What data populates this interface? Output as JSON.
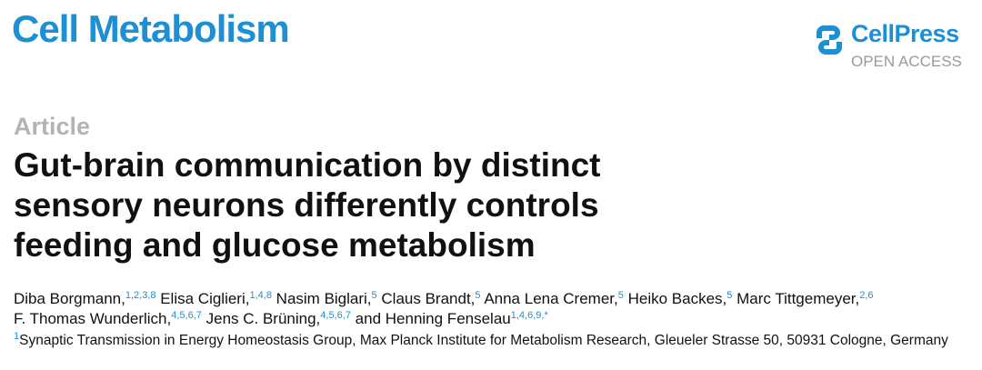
{
  "header": {
    "journal": "Cell Metabolism",
    "publisher": "CellPress",
    "access": "OPEN ACCESS"
  },
  "article_type": "Article",
  "title_lines": [
    "Gut-brain communication by distinct",
    "sensory neurons differently controls",
    "feeding and glucose metabolism"
  ],
  "authors": [
    {
      "name": "Diba Borgmann,",
      "sup": "1,2,3,8"
    },
    {
      "name": "Elisa Ciglieri,",
      "sup": "1,4,8"
    },
    {
      "name": "Nasim Biglari,",
      "sup": "5"
    },
    {
      "name": "Claus Brandt,",
      "sup": "5"
    },
    {
      "name": "Anna Lena Cremer,",
      "sup": "5"
    },
    {
      "name": "Heiko Backes,",
      "sup": "5"
    },
    {
      "name": "Marc Tittgemeyer,",
      "sup": "2,6"
    },
    {
      "name": "F. Thomas Wunderlich,",
      "sup": "4,5,6,7"
    },
    {
      "name": "Jens C. Brüning,",
      "sup": "4,5,6,7"
    },
    {
      "name": "and Henning Fenselau",
      "sup": "1,4,6,9,*"
    }
  ],
  "affiliation": {
    "number": "1",
    "text": "Synaptic Transmission in Energy Homeostasis Group, Max Planck Institute for Metabolism Research, Gleueler Strasse 50, 50931 Cologne, Germany"
  }
}
